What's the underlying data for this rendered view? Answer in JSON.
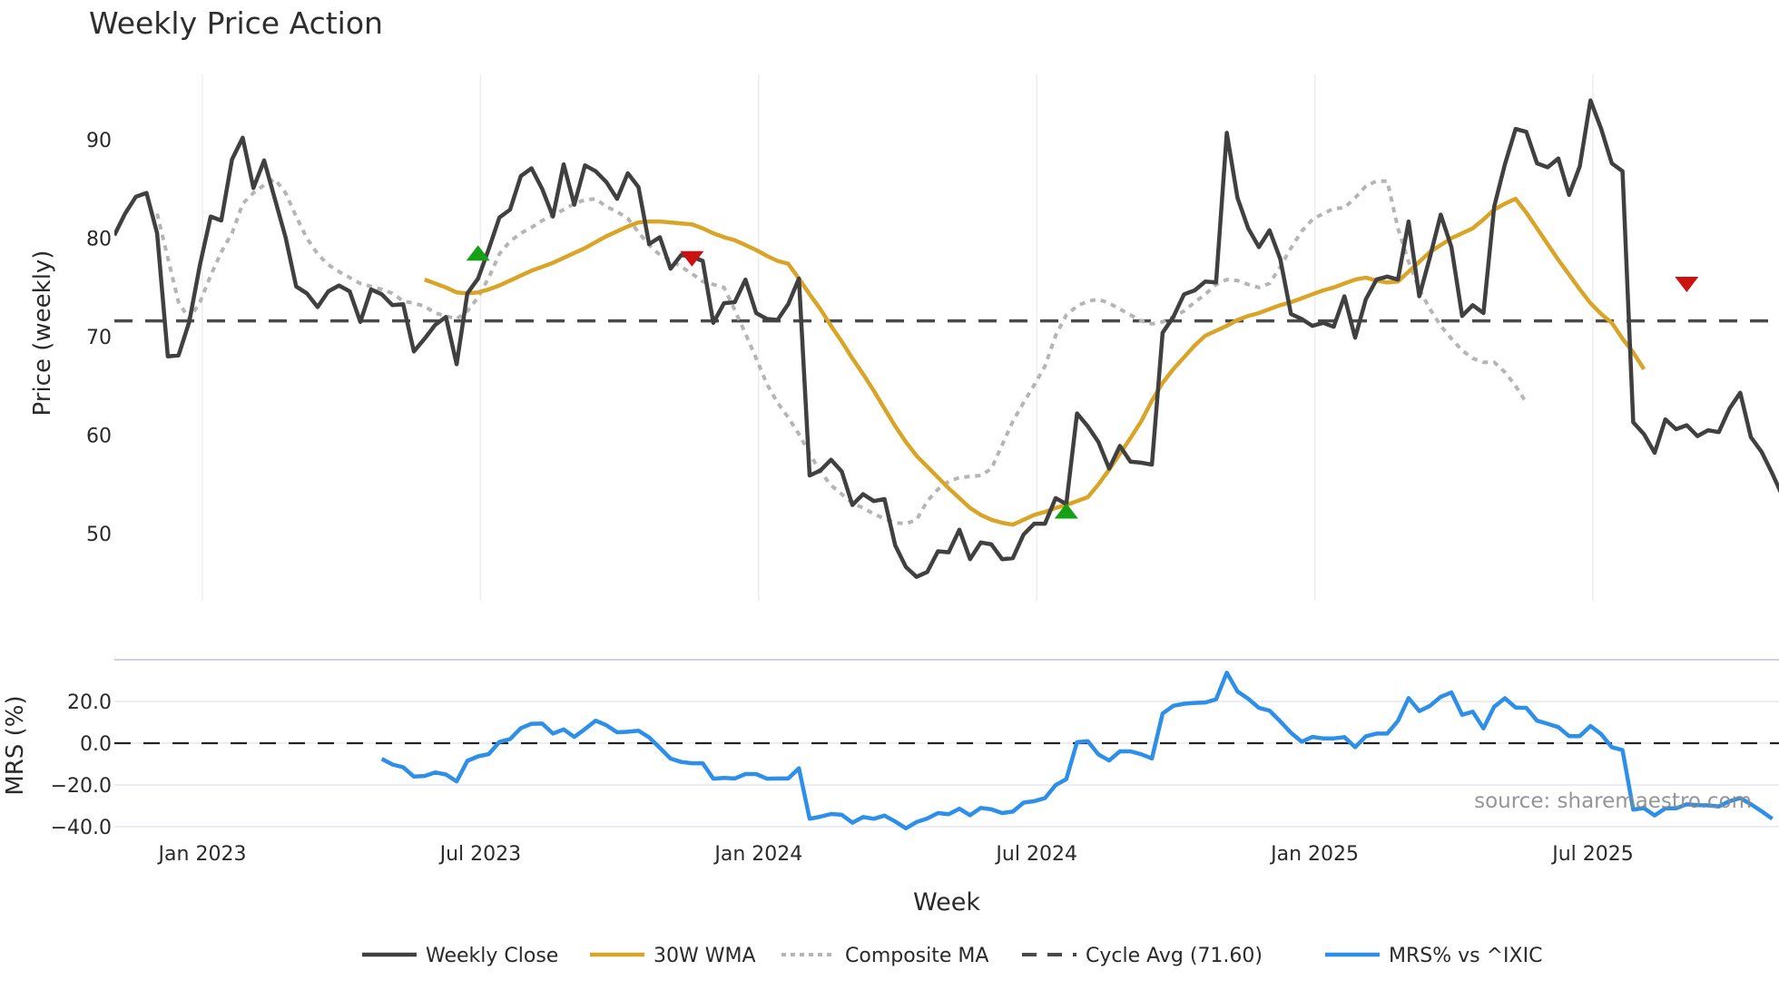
{
  "chart_data": {
    "type": "line",
    "title": "Weekly Price Action",
    "xlabel": "Week",
    "panels": [
      {
        "name": "price",
        "ylabel": "Price (weekly)",
        "ylim": [
          43.5,
          96.5
        ],
        "yticks": [
          50,
          60,
          70,
          80,
          90
        ],
        "grid": "x-only"
      },
      {
        "name": "mrs",
        "ylabel": "MRS (%)",
        "ylim": [
          -44,
          40
        ],
        "yticks": [
          -40.0,
          -20.0,
          0.0,
          20.0
        ],
        "ytick_labels": [
          "−40.0",
          "−20.0",
          "0.0",
          "20.0"
        ],
        "grid": "y"
      }
    ],
    "xtick_labels": [
      "Jan 2023",
      "Jul 2023",
      "Jan 2024",
      "Jul 2024",
      "Jan 2025",
      "Jul 2025"
    ],
    "xtick_week_index": [
      8,
      34,
      60,
      86,
      112,
      138
    ],
    "week_count": 156,
    "series": [
      {
        "name": "Weekly Close",
        "color": "#404040",
        "style": "solid",
        "start_index": 0,
        "values": [
          80.3,
          82.5,
          84.2,
          84.6,
          80.5,
          68.0,
          68.1,
          71.5,
          77.3,
          82.2,
          81.8,
          88.0,
          90.2,
          85.1,
          87.9,
          84.0,
          80.1,
          75.1,
          74.4,
          73.0,
          74.6,
          75.2,
          74.6,
          71.5,
          74.8,
          74.3,
          73.2,
          73.3,
          68.5,
          69.8,
          71.2,
          72.0,
          67.2,
          74.4,
          75.9,
          78.9,
          82.1,
          82.9,
          86.3,
          87.1,
          85.0,
          82.2,
          87.5,
          83.4,
          87.4,
          86.8,
          85.7,
          84.0,
          86.6,
          85.2,
          79.4,
          80.1,
          76.9,
          78.3,
          78.1,
          77.7,
          71.4,
          73.4,
          73.5,
          75.8,
          72.4,
          71.8,
          71.7,
          73.3,
          75.9,
          55.9,
          56.4,
          57.5,
          56.3,
          52.9,
          54.0,
          53.3,
          53.5,
          48.8,
          46.6,
          45.6,
          46.1,
          48.2,
          48.1,
          50.4,
          47.4,
          49.1,
          48.9,
          47.4,
          47.5,
          49.9,
          51.0,
          51.0,
          53.6,
          53.0,
          62.2,
          60.9,
          59.3,
          56.6,
          58.9,
          57.3,
          57.2,
          57.0,
          70.4,
          72.0,
          74.3,
          74.7,
          75.6,
          75.5,
          90.7,
          84.1,
          81.0,
          79.1,
          80.8,
          77.9,
          72.3,
          71.8,
          71.1,
          71.4,
          71.0,
          74.1,
          69.9,
          73.8,
          75.8,
          76.1,
          75.8,
          81.7,
          74.1,
          78.1,
          82.4,
          79.1,
          72.1,
          73.2,
          72.4,
          83.2,
          87.5,
          91.1,
          90.8,
          87.6,
          87.2,
          88.1,
          84.4,
          87.3,
          94.0,
          91.1,
          87.6,
          86.8,
          61.3,
          60.1,
          58.2,
          61.6,
          60.6,
          61.0,
          59.9,
          60.5,
          60.3,
          62.7,
          64.3,
          59.8,
          58.3,
          56.1,
          53.7
        ]
      },
      {
        "name": "30W WMA",
        "color": "#D9A528",
        "style": "solid",
        "start_index": 29,
        "values": [
          75.8,
          75.4,
          75.0,
          74.5,
          74.4,
          74.5,
          74.8,
          75.2,
          75.7,
          76.2,
          76.7,
          77.1,
          77.5,
          78.0,
          78.5,
          79.0,
          79.6,
          80.2,
          80.7,
          81.2,
          81.6,
          81.7,
          81.7,
          81.6,
          81.5,
          81.4,
          81.0,
          80.5,
          80.1,
          79.8,
          79.3,
          78.8,
          78.2,
          77.7,
          77.4,
          75.9,
          74.3,
          72.8,
          71.1,
          69.5,
          67.8,
          66.2,
          64.5,
          62.7,
          60.9,
          59.3,
          57.9,
          56.8,
          55.7,
          54.6,
          53.6,
          52.6,
          51.9,
          51.4,
          51.1,
          50.9,
          51.4,
          51.9,
          52.2,
          52.6,
          52.9,
          53.3,
          53.7,
          55.0,
          56.5,
          58.1,
          59.7,
          61.4,
          63.5,
          65.3,
          66.7,
          67.9,
          69.1,
          70.1,
          70.6,
          71.1,
          71.7,
          72.1,
          72.4,
          72.8,
          73.2,
          73.5,
          73.9,
          74.3,
          74.7,
          75.0,
          75.4,
          75.8,
          76.0,
          75.7,
          75.5,
          75.6,
          76.6,
          77.6,
          78.6,
          79.3,
          80.0,
          80.5,
          81.0,
          81.9,
          82.9,
          83.5,
          84.0,
          82.6,
          81.0,
          79.4,
          77.8,
          76.3,
          74.8,
          73.4,
          72.3,
          71.4,
          69.8,
          68.4,
          66.7
        ]
      },
      {
        "name": "Composite MA",
        "color": "#B5B5B5",
        "style": "dotted",
        "start_index": 4,
        "values": [
          82.5,
          78.0,
          73.5,
          71.8,
          73.5,
          76.2,
          78.6,
          80.5,
          83.5,
          84.6,
          85.4,
          86.0,
          84.6,
          82.2,
          80.0,
          78.4,
          77.3,
          76.6,
          76.0,
          75.4,
          75.1,
          74.8,
          74.4,
          73.6,
          73.4,
          73.1,
          72.4,
          72.1,
          71.8,
          72.6,
          74.0,
          76.0,
          78.4,
          79.7,
          80.5,
          81.1,
          81.8,
          82.3,
          82.9,
          83.5,
          83.9,
          84.0,
          83.2,
          82.7,
          82.0,
          80.6,
          79.3,
          78.3,
          77.8,
          77.1,
          76.4,
          75.6,
          75.3,
          75.0,
          72.7,
          70.3,
          67.8,
          65.2,
          63.3,
          61.8,
          60.1,
          58.1,
          56.3,
          54.9,
          54.0,
          53.1,
          52.6,
          52.0,
          51.5,
          51.1,
          51.0,
          51.4,
          53.3,
          54.5,
          55.3,
          55.7,
          55.8,
          55.9,
          56.6,
          59.0,
          61.4,
          63.3,
          65.1,
          67.0,
          70.1,
          72.2,
          73.1,
          73.6,
          73.8,
          73.4,
          72.8,
          72.2,
          71.6,
          71.3,
          71.5,
          72.0,
          72.6,
          73.5,
          74.3,
          75.3,
          75.8,
          75.7,
          75.3,
          75.0,
          75.4,
          77.1,
          79.0,
          80.7,
          81.9,
          82.5,
          83.0,
          83.1,
          84.1,
          85.3,
          85.8,
          85.8,
          81.0,
          77.6,
          74.8,
          72.8,
          71.1,
          69.8,
          68.6,
          67.8,
          67.4,
          67.4,
          66.4,
          65.0,
          63.3
        ]
      },
      {
        "name": "Cycle Avg (71.60)",
        "color": "#4A4A4A",
        "style": "dashed",
        "value": 71.6
      },
      {
        "name": "MRS% vs ^IXIC",
        "color": "#2E8FE8",
        "style": "solid",
        "panel": "mrs",
        "start_index": 25,
        "values": [
          -7.5,
          -10.2,
          -11.5,
          -16.0,
          -15.7,
          -14.0,
          -15.0,
          -18.3,
          -8.5,
          -6.3,
          -5.2,
          0.6,
          2.0,
          7.2,
          9.3,
          9.4,
          4.6,
          6.6,
          3.0,
          6.8,
          10.8,
          8.6,
          5.2,
          5.5,
          6.0,
          2.8,
          -2.2,
          -7.4,
          -9.0,
          -9.6,
          -9.6,
          -17.0,
          -16.6,
          -16.9,
          -14.8,
          -14.8,
          -17.0,
          -16.9,
          -16.9,
          -12.0,
          -36.2,
          -35.2,
          -33.9,
          -34.3,
          -38.1,
          -35.4,
          -36.2,
          -34.7,
          -37.5,
          -40.8,
          -37.8,
          -36.1,
          -33.5,
          -34.0,
          -31.4,
          -34.5,
          -31.0,
          -31.7,
          -33.5,
          -32.8,
          -28.5,
          -27.8,
          -26.3,
          -20.1,
          -17.2,
          0.5,
          1.0,
          -5.4,
          -8.3,
          -3.9,
          -3.9,
          -5.3,
          -7.3,
          14.2,
          17.9,
          18.9,
          19.3,
          19.5,
          21.0,
          33.8,
          24.8,
          21.3,
          16.9,
          15.6,
          10.5,
          5.0,
          0.7,
          3.0,
          2.3,
          2.3,
          2.9,
          -1.9,
          3.3,
          4.6,
          4.6,
          10.7,
          21.6,
          15.4,
          17.9,
          22.2,
          24.3,
          13.6,
          15.1,
          7.1,
          17.5,
          21.5,
          17.1,
          16.9,
          10.8,
          9.3,
          7.7,
          3.4,
          3.4,
          8.2,
          4.3,
          -1.9,
          -3.3,
          -31.8,
          -31.1,
          -34.6,
          -31.2,
          -31.2,
          -29.3,
          -29.7,
          -29.8,
          -30.3,
          -27.8,
          -26.3,
          -29.2,
          -32.6,
          -36.2
        ]
      }
    ],
    "markers": [
      {
        "type": "buy",
        "shape": "triangle-up",
        "color": "#16A016",
        "week_index": 34,
        "value": 78.5
      },
      {
        "type": "sell",
        "shape": "triangle-down",
        "color": "#CC1111",
        "week_index": 54,
        "value": 77.9
      },
      {
        "type": "buy",
        "shape": "triangle-up",
        "color": "#16A016",
        "week_index": 89,
        "value": 52.3
      },
      {
        "type": "sell",
        "shape": "triangle-down",
        "color": "#CC1111",
        "week_index": 147,
        "value": 75.3
      }
    ],
    "annotations": [
      {
        "text": "source: sharemaestro.com",
        "panel": "mrs"
      }
    ],
    "legend": {
      "position": "bottom-center",
      "entries": [
        "Weekly Close",
        "30W WMA",
        "Composite MA",
        "Cycle Avg (71.60)",
        "MRS% vs ^IXIC"
      ]
    }
  }
}
